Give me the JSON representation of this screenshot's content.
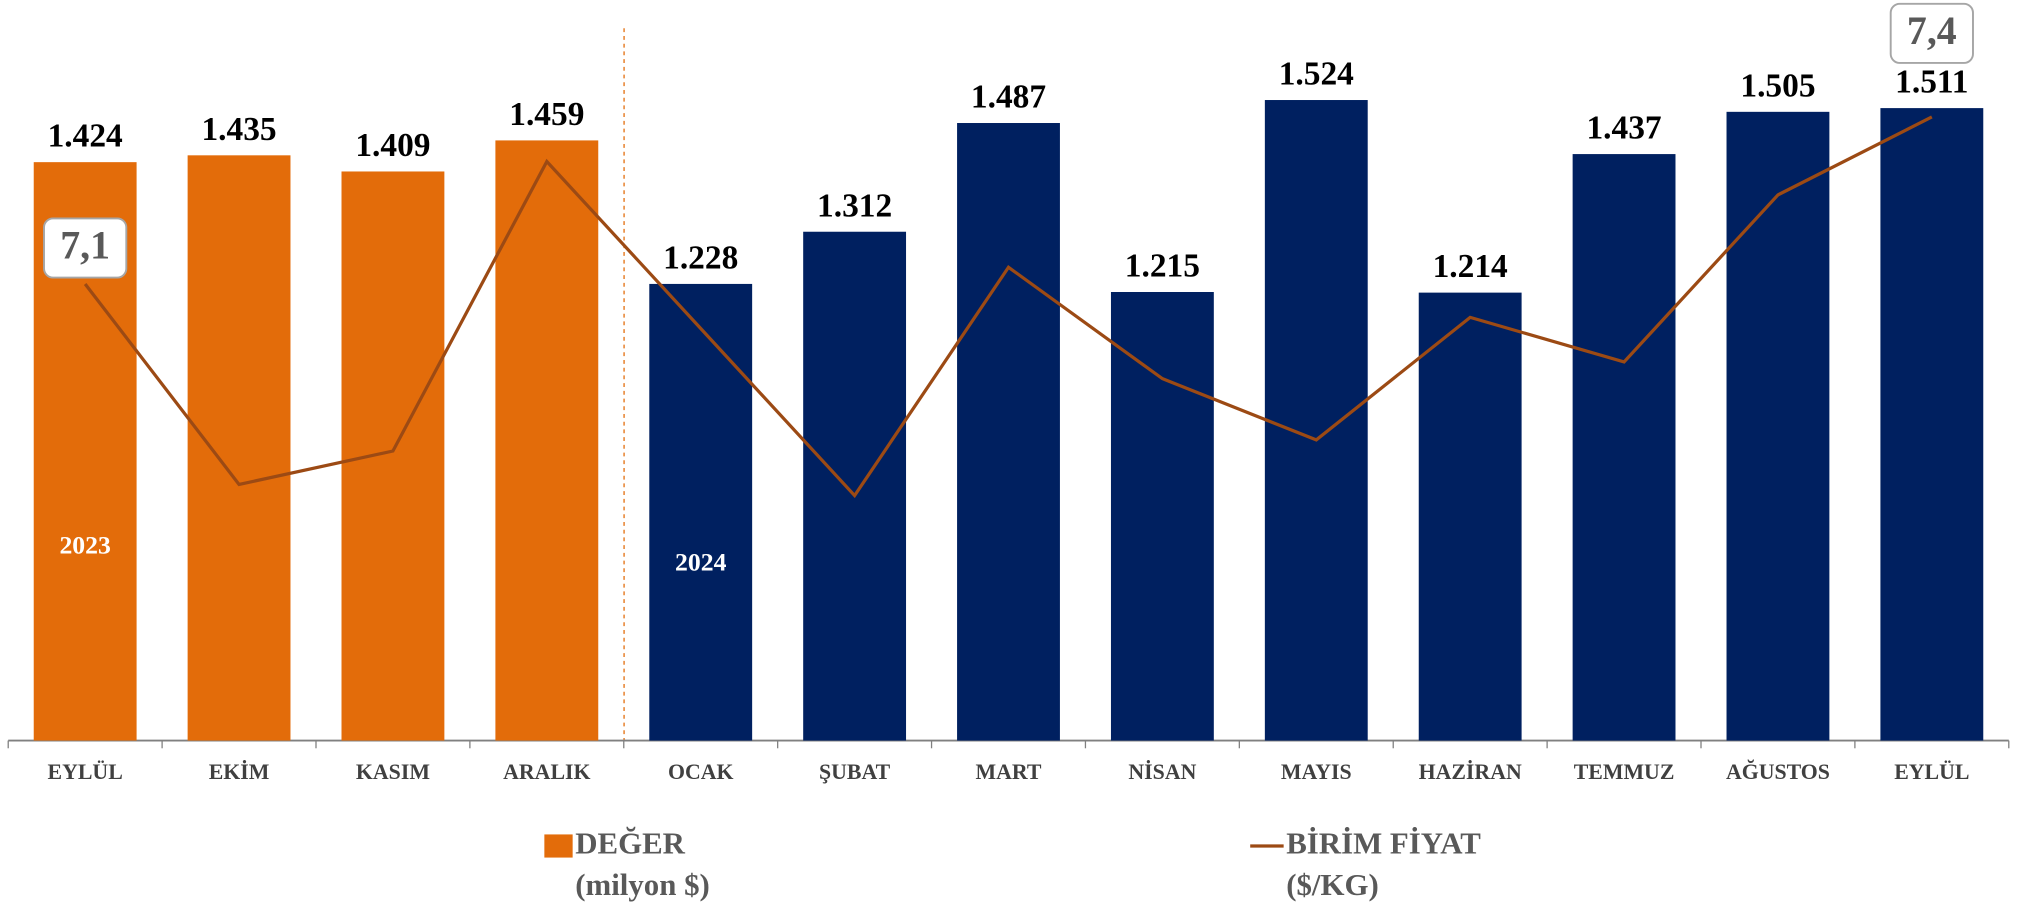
{
  "chart_data": {
    "type": "bar-line",
    "categories": [
      "EYLÜL",
      "EKİM",
      "KASIM",
      "ARALIK",
      "OCAK",
      "ŞUBAT",
      "MART",
      "NİSAN",
      "MAYIS",
      "HAZİRAN",
      "TEMMUZ",
      "AĞUSTOS",
      "EYLÜL"
    ],
    "annotations": [
      "2023",
      "2024"
    ],
    "series": [
      {
        "name": "DEĞER (milyon $)",
        "type": "bar",
        "colors": [
          "#e36c0a",
          "#e36c0a",
          "#e36c0a",
          "#e36c0a",
          "#002060",
          "#002060",
          "#002060",
          "#002060",
          "#002060",
          "#002060",
          "#002060",
          "#002060",
          "#002060"
        ],
        "color": "#e36c0a",
        "values": [
          1424,
          1435,
          1409,
          1459,
          1228,
          1312,
          1487,
          1215,
          1524,
          1214,
          1437,
          1505,
          1511
        ],
        "value_labels": [
          "1.424",
          "1.435",
          "1.409",
          "1.459",
          "1.228",
          "1.312",
          "1.487",
          "1.215",
          "1.524",
          "1.214",
          "1.437",
          "1.505",
          "1.511"
        ]
      },
      {
        "name": "BİRİM FİYAT ($/KG)",
        "type": "line",
        "axis": "y2",
        "color": "#9c4a14",
        "values": [
          7.1,
          6.74,
          6.8,
          7.32,
          7.02,
          6.72,
          7.13,
          6.93,
          6.82,
          7.04,
          6.96,
          7.26,
          7.4
        ],
        "value_labels": [
          "7,1",
          null,
          null,
          null,
          null,
          null,
          null,
          null,
          null,
          null,
          null,
          null,
          "7,4"
        ]
      }
    ],
    "ylim": [
      493,
      1685
    ],
    "y2lim": [
      6.28,
      7.61
    ]
  }
}
